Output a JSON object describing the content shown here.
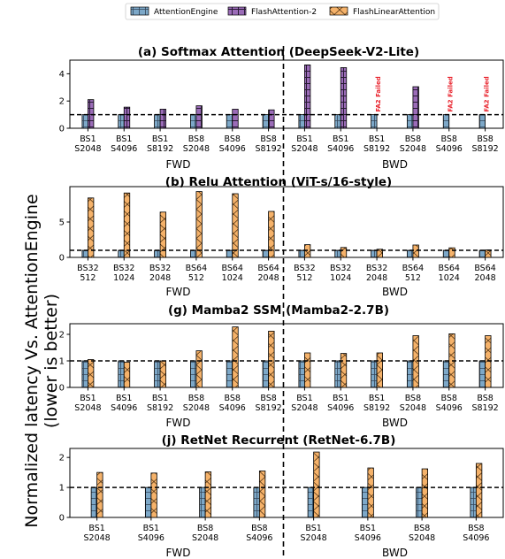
{
  "chart_data": [
    {
      "type": "bar",
      "title": "(a) Softmax Attention (DeepSeek-V2-Lite)",
      "categories": [
        "BS1\nS2048",
        "BS1\nS4096",
        "BS1\nS8192",
        "BS8\nS2048",
        "BS8\nS4096",
        "BS8\nS8192",
        "BS1\nS2048",
        "BS1\nS4096",
        "BS1\nS8192",
        "BS8\nS2048",
        "BS8\nS4096",
        "BS8\nS8192"
      ],
      "groups": [
        {
          "label": "FWD",
          "count": 6
        },
        {
          "label": "BWD",
          "count": 6
        }
      ],
      "series": [
        {
          "name": "AttentionEngine",
          "values": [
            1,
            1,
            1,
            1,
            1,
            1,
            1,
            1,
            1,
            1,
            1,
            1
          ]
        },
        {
          "name": "FlashAttention-2",
          "values": [
            2.1,
            1.55,
            1.4,
            1.65,
            1.4,
            1.35,
            4.65,
            4.45,
            null,
            3.05,
            null,
            null
          ]
        }
      ],
      "annotations": [
        {
          "text": "FA2 Failed",
          "category_index": 8
        },
        {
          "text": "FA2 Failed",
          "category_index": 10
        },
        {
          "text": "FA2 Failed",
          "category_index": 11
        }
      ],
      "ylim": [
        0,
        5
      ],
      "yticks": [
        0,
        2,
        4
      ],
      "reference_line": 1
    },
    {
      "type": "bar",
      "title": "(b) Relu Attention (ViT-s/16-style)",
      "categories": [
        "BS32\n512",
        "BS32\n1024",
        "BS32\n2048",
        "BS64\n512",
        "BS64\n1024",
        "BS64\n2048",
        "BS32\n512",
        "BS32\n1024",
        "BS32\n2048",
        "BS64\n512",
        "BS64\n1024",
        "BS64\n2048"
      ],
      "groups": [
        {
          "label": "FWD",
          "count": 6
        },
        {
          "label": "BWD",
          "count": 6
        }
      ],
      "series": [
        {
          "name": "AttentionEngine",
          "values": [
            1,
            1,
            1,
            1,
            1,
            1,
            1,
            1,
            1,
            1,
            1,
            1
          ]
        },
        {
          "name": "FlashLinearAttention",
          "values": [
            8.4,
            9.1,
            6.4,
            9.3,
            9.0,
            6.5,
            1.8,
            1.4,
            1.15,
            1.75,
            1.35,
            1.05
          ]
        }
      ],
      "ylim": [
        0,
        10
      ],
      "yticks": [
        0,
        5
      ],
      "reference_line": 1
    },
    {
      "type": "bar",
      "title": "(g) Mamba2 SSM (Mamba2-2.7B)",
      "categories": [
        "BS1\nS2048",
        "BS1\nS4096",
        "BS1\nS8192",
        "BS8\nS2048",
        "BS8\nS4096",
        "BS8\nS8192",
        "BS1\nS2048",
        "BS1\nS4096",
        "BS1\nS8192",
        "BS8\nS2048",
        "BS8\nS4096",
        "BS8\nS8192"
      ],
      "groups": [
        {
          "label": "FWD",
          "count": 6
        },
        {
          "label": "BWD",
          "count": 6
        }
      ],
      "series": [
        {
          "name": "AttentionEngine",
          "values": [
            1,
            1,
            1,
            1,
            1,
            1,
            1,
            1,
            1,
            1,
            1,
            1
          ]
        },
        {
          "name": "FlashLinearAttention",
          "values": [
            1.05,
            0.95,
            1.0,
            1.38,
            2.28,
            2.12,
            1.3,
            1.28,
            1.3,
            1.95,
            2.02,
            1.95
          ]
        }
      ],
      "ylim": [
        0,
        2.4
      ],
      "yticks": [
        0,
        1,
        2
      ],
      "reference_line": 1
    },
    {
      "type": "bar",
      "title": "(j) RetNet Recurrent (RetNet-6.7B)",
      "categories": [
        "BS1\nS2048",
        "BS1\nS4096",
        "BS8\nS2048",
        "BS8\nS4096",
        "BS1\nS2048",
        "BS1\nS4096",
        "BS8\nS2048",
        "BS8\nS4096"
      ],
      "groups": [
        {
          "label": "FWD",
          "count": 4
        },
        {
          "label": "BWD",
          "count": 4
        }
      ],
      "series": [
        {
          "name": "AttentionEngine",
          "values": [
            1,
            1,
            1,
            1,
            1,
            1,
            1,
            1
          ]
        },
        {
          "name": "FlashLinearAttention",
          "values": [
            1.5,
            1.48,
            1.52,
            1.55,
            2.18,
            1.65,
            1.62,
            1.8
          ]
        }
      ],
      "ylim": [
        0,
        2.3
      ],
      "yticks": [
        0,
        1,
        2
      ],
      "reference_line": 1
    }
  ],
  "legend": [
    {
      "name": "AttentionEngine",
      "color": "#7da8c8",
      "hatch": "grid"
    },
    {
      "name": "FlashAttention-2",
      "color": "#9b6cb8",
      "hatch": "vertical"
    },
    {
      "name": "FlashLinearAttention",
      "color": "#f5b26a",
      "hatch": "cross"
    }
  ],
  "shared_ylabel_line1": "Normalized latency Vs. AttentionEngine",
  "shared_ylabel_line2": "(lower is better)"
}
